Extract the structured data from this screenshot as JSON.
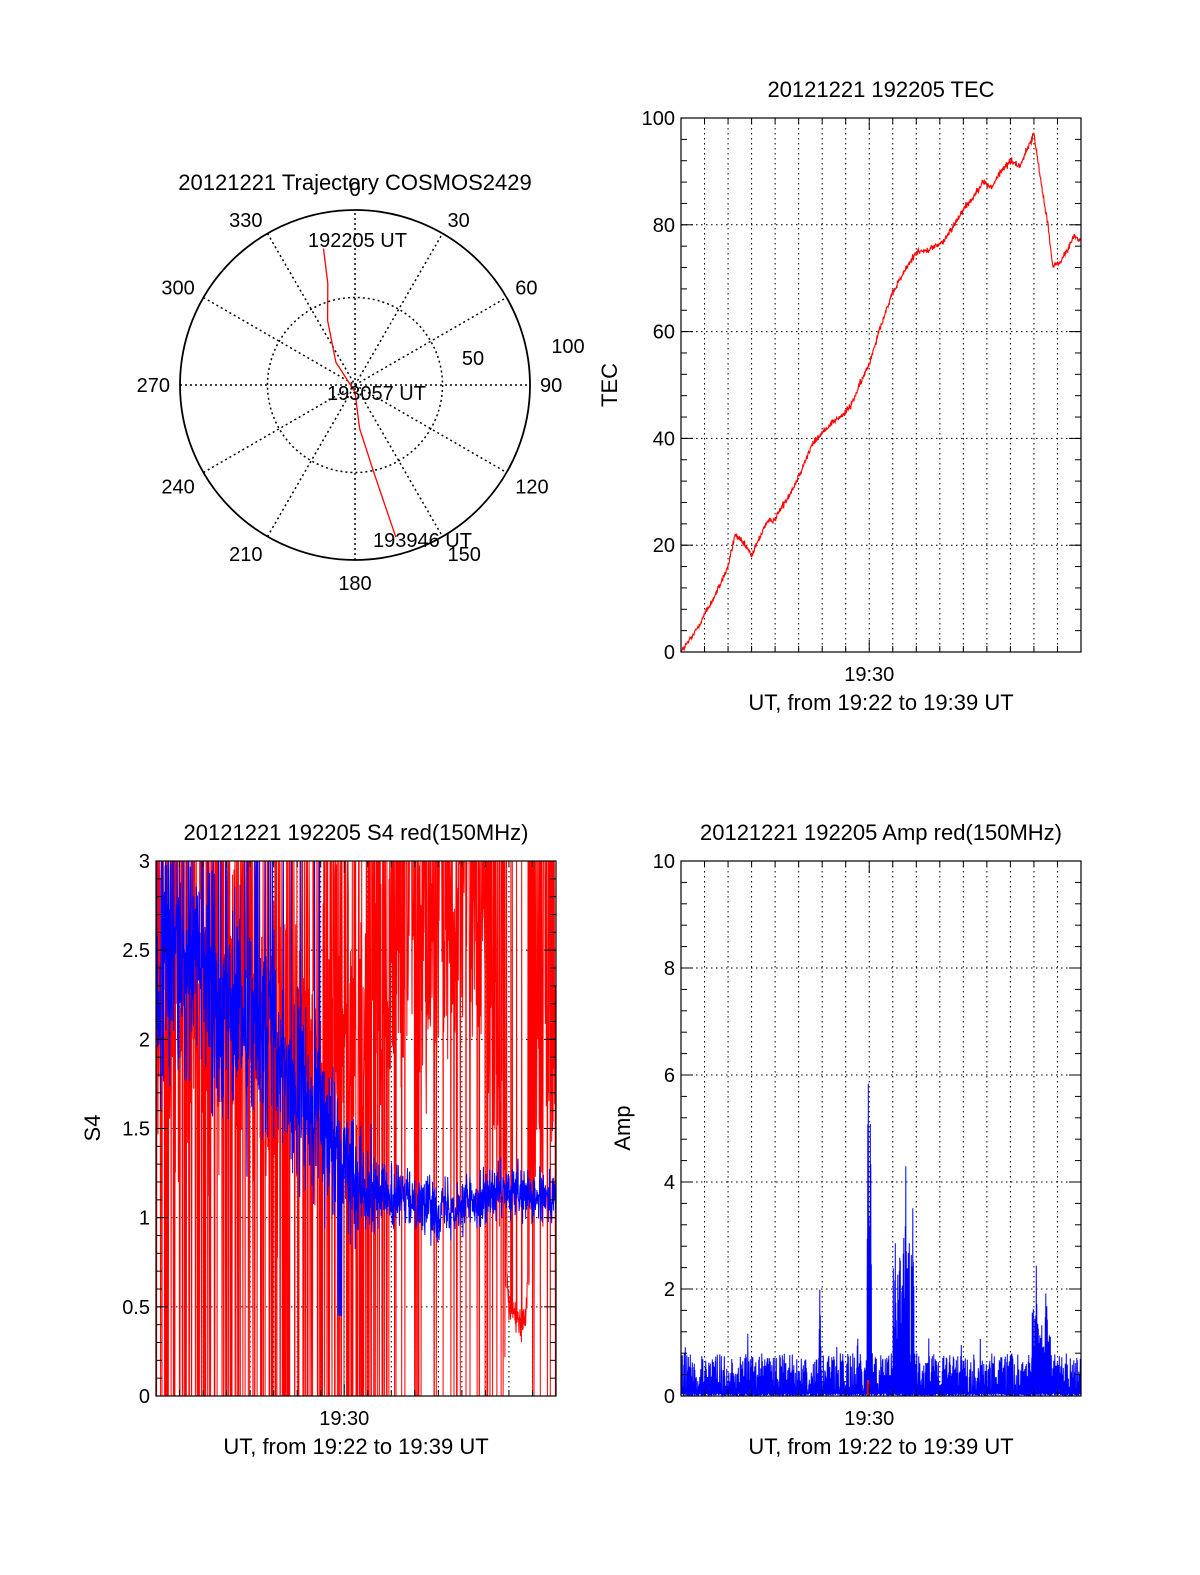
{
  "colors": {
    "red": "#ff0000",
    "blue": "#0000ff"
  },
  "chart_data": [
    {
      "id": "trajectory",
      "type": "scatter",
      "subtype": "polar",
      "title": "20121221 Trajectory COSMOS2429",
      "azimuth_labels": [
        "0",
        "30",
        "60",
        "90",
        "120",
        "150",
        "180",
        "210",
        "240",
        "270",
        "300",
        "330"
      ],
      "radial_labels": [
        "50",
        "100"
      ],
      "radial_range": [
        0,
        100
      ],
      "trajectory": [
        {
          "azimuth_deg": 347,
          "radius": 80
        },
        {
          "azimuth_deg": 345,
          "radius": 60
        },
        {
          "azimuth_deg": 337,
          "radius": 40
        },
        {
          "azimuth_deg": 320,
          "radius": 17
        },
        {
          "azimuth_deg": 180,
          "radius": 4
        },
        {
          "azimuth_deg": 174,
          "radius": 25
        },
        {
          "azimuth_deg": 168,
          "radius": 50
        },
        {
          "azimuth_deg": 165,
          "radius": 90
        }
      ],
      "annotations": [
        "192205 UT",
        "193057 UT",
        "193946 UT"
      ],
      "color": "red"
    },
    {
      "id": "tec",
      "type": "line",
      "title": "20121221 192205 TEC",
      "xlabel": "UT, from 19:22 to 19:39 UT",
      "ylabel": "TEC",
      "xrange_min": [
        0,
        17
      ],
      "x_tick_label": "19:30",
      "x_tick_at_min": 8,
      "ylim": [
        0,
        100
      ],
      "yticks": [
        0,
        20,
        40,
        60,
        80,
        100
      ],
      "grid": true,
      "series": [
        {
          "color": "red",
          "points": [
            [
              0,
              0
            ],
            [
              0.5,
              3
            ],
            [
              1,
              7
            ],
            [
              1.5,
              11
            ],
            [
              2,
              16
            ],
            [
              2.2,
              20
            ],
            [
              2.3,
              22
            ],
            [
              2.5,
              21
            ],
            [
              2.8,
              19.5
            ],
            [
              3,
              18
            ],
            [
              3.3,
              21
            ],
            [
              3.6,
              24
            ],
            [
              4,
              25
            ],
            [
              4.4,
              28
            ],
            [
              4.8,
              31
            ],
            [
              5.2,
              35
            ],
            [
              5.6,
              39
            ],
            [
              6,
              41
            ],
            [
              6.4,
              43
            ],
            [
              6.8,
              44
            ],
            [
              7.2,
              46
            ],
            [
              7.6,
              50
            ],
            [
              8,
              54
            ],
            [
              8.4,
              60
            ],
            [
              8.8,
              65
            ],
            [
              9.2,
              69
            ],
            [
              9.6,
              72
            ],
            [
              10,
              75
            ],
            [
              10.4,
              75
            ],
            [
              10.8,
              76
            ],
            [
              11.2,
              77
            ],
            [
              11.6,
              80
            ],
            [
              12,
              83
            ],
            [
              12.4,
              85
            ],
            [
              12.8,
              88
            ],
            [
              13.2,
              87
            ],
            [
              13.6,
              90
            ],
            [
              14,
              92
            ],
            [
              14.4,
              91
            ],
            [
              14.8,
              95
            ],
            [
              15,
              97
            ],
            [
              15.3,
              88
            ],
            [
              15.6,
              80
            ],
            [
              15.8,
              72
            ],
            [
              16.1,
              73
            ],
            [
              16.4,
              75
            ],
            [
              16.7,
              78
            ],
            [
              17,
              77
            ]
          ]
        }
      ]
    },
    {
      "id": "s4",
      "type": "line",
      "title": "20121221 192205 S4 red(150MHz)",
      "xlabel": "UT, from 19:22 to 19:39 UT",
      "ylabel": "S4",
      "xrange_min": [
        0,
        17
      ],
      "x_tick_label": "19:30",
      "x_tick_at_min": 8,
      "ylim": [
        0,
        3
      ],
      "yticks": [
        0,
        0.5,
        1,
        1.5,
        2,
        2.5,
        3
      ],
      "ytick_labels": [
        "0",
        "0.5",
        "1",
        "1.5",
        "2",
        "2.5",
        "3"
      ],
      "grid": true,
      "series": [
        {
          "color": "red",
          "style": "spikes",
          "mean_trend": [
            [
              0,
              2.0
            ],
            [
              2,
              2.1
            ],
            [
              4,
              2.2
            ],
            [
              6,
              2.0
            ],
            [
              8,
              1.9
            ],
            [
              10,
              2.3
            ],
            [
              12,
              2.5
            ],
            [
              14,
              2.6
            ],
            [
              15,
              0.5
            ],
            [
              15.7,
              0.4
            ],
            [
              16.2,
              1.8
            ],
            [
              17,
              1.9
            ]
          ]
        },
        {
          "color": "blue",
          "mean_trend": [
            [
              0,
              2.4
            ],
            [
              1,
              2.5
            ],
            [
              2,
              2.35
            ],
            [
              3,
              2.2
            ],
            [
              4,
              2.1
            ],
            [
              5,
              1.9
            ],
            [
              6,
              1.7
            ],
            [
              7,
              1.55
            ],
            [
              8,
              1.3
            ],
            [
              9,
              1.2
            ],
            [
              10,
              1.1
            ],
            [
              11,
              1.1
            ],
            [
              12,
              1.05
            ],
            [
              13,
              1.08
            ],
            [
              14,
              1.12
            ],
            [
              15,
              1.15
            ],
            [
              16,
              1.1
            ],
            [
              17,
              1.12
            ]
          ],
          "noise_trend": [
            [
              0,
              0.5
            ],
            [
              4,
              0.45
            ],
            [
              6,
              0.35
            ],
            [
              8,
              0.25
            ],
            [
              10,
              0.12
            ],
            [
              17,
              0.1
            ]
          ]
        }
      ]
    },
    {
      "id": "amp",
      "type": "line",
      "title": "20121221 192205 Amp red(150MHz)",
      "xlabel": "UT, from 19:22 to 19:39 UT",
      "ylabel": "Amp",
      "xrange_min": [
        0,
        17
      ],
      "x_tick_label": "19:30",
      "x_tick_at_min": 8,
      "ylim": [
        0,
        10
      ],
      "yticks": [
        0,
        2,
        4,
        6,
        8,
        10
      ],
      "grid": true,
      "series": [
        {
          "color": "blue",
          "baseline": [
            0,
            0.8
          ],
          "peaks": [
            [
              5.9,
              1.9
            ],
            [
              7.5,
              1.0
            ],
            [
              7.95,
              6.5
            ],
            [
              8.05,
              5.5
            ],
            [
              9.1,
              2.9
            ],
            [
              9.3,
              2.7
            ],
            [
              9.55,
              4.4
            ],
            [
              9.85,
              3.4
            ],
            [
              15.1,
              2.3
            ],
            [
              15.5,
              1.8
            ]
          ]
        },
        {
          "color": "red",
          "peaks": [
            [
              7.95,
              0.3
            ]
          ]
        }
      ]
    }
  ]
}
